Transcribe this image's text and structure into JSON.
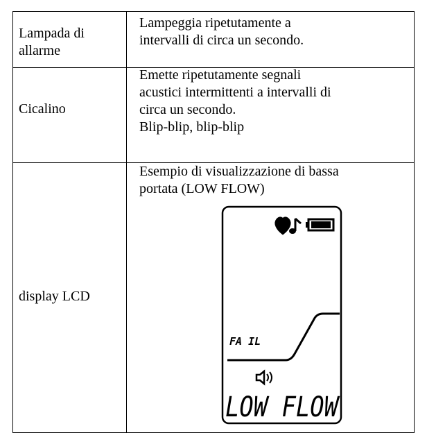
{
  "table": {
    "rows": [
      {
        "label": [
          "Lampada di",
          "allarme"
        ],
        "description": [
          "Lampeggia ripetutamente a",
          "intervalli di circa un secondo."
        ]
      },
      {
        "label": [
          "Cicalino"
        ],
        "description": [
          "Emette ripetutamente segnali",
          "acustici intermittenti a intervalli di",
          "circa un secondo.",
          "Blip-blip, blip-blip"
        ]
      },
      {
        "label": [
          "display LCD"
        ],
        "description": [
          "Esempio di visualizzazione di bassa",
          "portata (LOW FLOW)"
        ]
      }
    ]
  },
  "lcd": {
    "status": "FA IL",
    "message": "LOW FLOW"
  }
}
